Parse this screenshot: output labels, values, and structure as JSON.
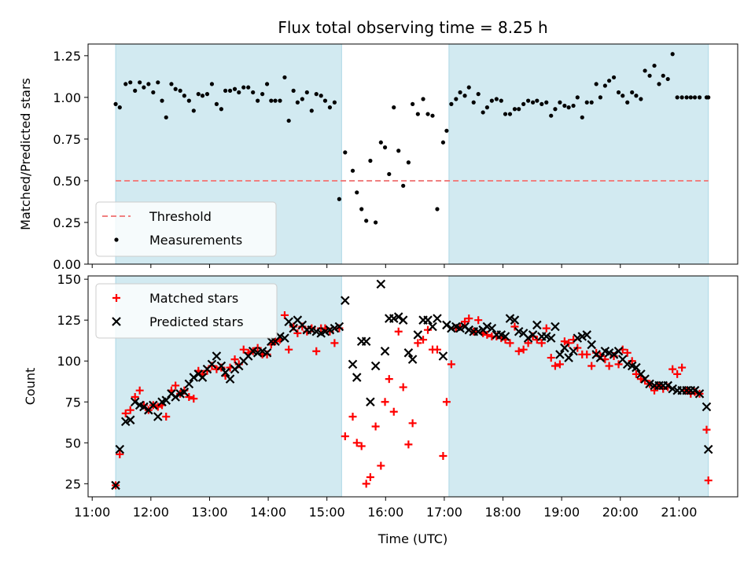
{
  "chart_data": {
    "title": "Flux total observing time = 8.25 h",
    "xlabel": "Time (UTC)",
    "x_ticks": [
      "11:00",
      "12:00",
      "13:00",
      "14:00",
      "15:00",
      "16:00",
      "17:00",
      "18:00",
      "19:00",
      "20:00",
      "21:00"
    ],
    "x_tick_hours": [
      11,
      12,
      13,
      14,
      15,
      16,
      17,
      18,
      19,
      20,
      21
    ],
    "xlim_hours": [
      10.93,
      22.0
    ],
    "shaded_intervals_hours": [
      [
        11.4,
        15.25
      ],
      [
        17.08,
        21.5
      ]
    ],
    "shade_color": "#add8e6",
    "panels": [
      {
        "type": "scatter",
        "ylabel": "Matched/Predicted stars",
        "ylim": [
          0,
          1.32
        ],
        "y_ticks": [
          "0.00",
          "0.25",
          "0.50",
          "0.75",
          "1.00",
          "1.25"
        ],
        "y_tick_values": [
          0,
          0.25,
          0.5,
          0.75,
          1.0,
          1.25
        ],
        "threshold": {
          "name": "Threshold",
          "value": 0.5,
          "color": "#f08080"
        },
        "legend_position": "lower-left",
        "series": [
          {
            "name": "Measurements",
            "color": "#000000",
            "marker": "dot",
            "x_hours": [
              11.4,
              11.47,
              11.57,
              11.65,
              11.73,
              11.81,
              11.88,
              11.96,
              12.04,
              12.12,
              12.19,
              12.26,
              12.35,
              12.42,
              12.5,
              12.57,
              12.65,
              12.73,
              12.81,
              12.88,
              12.96,
              13.04,
              13.12,
              13.2,
              13.27,
              13.35,
              13.43,
              13.5,
              13.58,
              13.66,
              13.74,
              13.82,
              13.9,
              13.98,
              14.05,
              14.12,
              14.2,
              14.28,
              14.35,
              14.43,
              14.5,
              14.58,
              14.66,
              14.74,
              14.82,
              14.9,
              14.97,
              15.05,
              15.13,
              15.21,
              15.31,
              15.44,
              15.51,
              15.59,
              15.67,
              15.74,
              15.83,
              15.92,
              15.99,
              16.06,
              16.14,
              16.22,
              16.3,
              16.39,
              16.46,
              16.55,
              16.64,
              16.72,
              16.8,
              16.88,
              16.98,
              17.04,
              17.12,
              17.2,
              17.27,
              17.35,
              17.42,
              17.5,
              17.58,
              17.66,
              17.73,
              17.81,
              17.89,
              17.97,
              18.04,
              18.12,
              18.2,
              18.27,
              18.35,
              18.43,
              18.51,
              18.58,
              18.66,
              18.74,
              18.82,
              18.89,
              18.97,
              19.05,
              19.12,
              19.2,
              19.27,
              19.35,
              19.43,
              19.51,
              19.59,
              19.66,
              19.74,
              19.81,
              19.89,
              19.97,
              20.04,
              20.12,
              20.2,
              20.27,
              20.35,
              20.42,
              20.5,
              20.58,
              20.66,
              20.73,
              20.81,
              20.89,
              20.97,
              21.05,
              21.13,
              21.2,
              21.27,
              21.35,
              21.47,
              21.5
            ],
            "y": [
              0.96,
              0.94,
              1.08,
              1.09,
              1.04,
              1.09,
              1.06,
              1.08,
              1.03,
              1.09,
              0.98,
              0.88,
              1.08,
              1.05,
              1.04,
              1.01,
              0.98,
              0.92,
              1.02,
              1.01,
              1.02,
              1.08,
              0.96,
              0.93,
              1.04,
              1.04,
              1.05,
              1.03,
              1.06,
              1.06,
              1.03,
              0.98,
              1.02,
              1.08,
              0.98,
              0.98,
              0.98,
              1.12,
              0.86,
              1.04,
              0.97,
              0.99,
              1.03,
              0.92,
              1.02,
              1.01,
              0.98,
              0.94,
              0.97,
              0.39,
              0.67,
              0.56,
              0.43,
              0.33,
              0.26,
              0.62,
              0.25,
              0.73,
              0.7,
              0.54,
              0.94,
              0.68,
              0.47,
              0.61,
              0.96,
              0.9,
              0.99,
              0.9,
              0.89,
              0.33,
              0.73,
              0.8,
              0.96,
              0.99,
              1.03,
              1.01,
              1.06,
              0.97,
              1.02,
              0.91,
              0.94,
              0.98,
              0.99,
              0.98,
              0.9,
              0.9,
              0.93,
              0.93,
              0.96,
              0.98,
              0.97,
              0.98,
              0.96,
              0.97,
              0.89,
              0.93,
              0.97,
              0.95,
              0.94,
              0.95,
              1.0,
              0.88,
              0.97,
              0.97,
              1.08,
              1.0,
              1.07,
              1.1,
              1.12,
              1.03,
              1.01,
              0.97,
              1.03,
              1.01,
              0.99,
              1.16,
              1.13,
              1.19,
              1.08,
              1.13,
              1.11,
              1.26,
              1.0,
              1.0,
              1.0,
              1.0,
              1.0,
              1.0,
              1.0,
              1.0
            ]
          }
        ]
      },
      {
        "type": "scatter",
        "ylabel": "Count",
        "ylim": [
          17,
          152
        ],
        "y_ticks": [
          "25",
          "50",
          "75",
          "100",
          "125",
          "150"
        ],
        "y_tick_values": [
          25,
          50,
          75,
          100,
          125,
          150
        ],
        "legend_position": "upper-left",
        "series": [
          {
            "name": "Matched stars",
            "color": "#ff0000",
            "marker": "plus",
            "x_hours": [
              11.4,
              11.47,
              11.57,
              11.65,
              11.73,
              11.81,
              11.88,
              11.96,
              12.04,
              12.12,
              12.19,
              12.26,
              12.35,
              12.42,
              12.5,
              12.57,
              12.65,
              12.73,
              12.81,
              12.88,
              12.96,
              13.04,
              13.12,
              13.2,
              13.27,
              13.35,
              13.43,
              13.5,
              13.58,
              13.66,
              13.74,
              13.82,
              13.9,
              13.98,
              14.05,
              14.12,
              14.2,
              14.28,
              14.35,
              14.43,
              14.5,
              14.58,
              14.66,
              14.74,
              14.82,
              14.9,
              14.97,
              15.05,
              15.13,
              15.21,
              15.31,
              15.44,
              15.51,
              15.59,
              15.67,
              15.74,
              15.83,
              15.92,
              15.99,
              16.06,
              16.14,
              16.22,
              16.3,
              16.39,
              16.46,
              16.55,
              16.64,
              16.72,
              16.8,
              16.88,
              16.98,
              17.04,
              17.12,
              17.2,
              17.27,
              17.35,
              17.42,
              17.5,
              17.58,
              17.66,
              17.73,
              17.81,
              17.89,
              17.97,
              18.04,
              18.12,
              18.2,
              18.27,
              18.35,
              18.43,
              18.51,
              18.58,
              18.66,
              18.74,
              18.82,
              18.89,
              18.97,
              19.05,
              19.12,
              19.2,
              19.27,
              19.35,
              19.43,
              19.51,
              19.59,
              19.66,
              19.74,
              19.81,
              19.89,
              19.97,
              20.04,
              20.12,
              20.2,
              20.27,
              20.35,
              20.42,
              20.5,
              20.58,
              20.66,
              20.73,
              20.81,
              20.89,
              20.97,
              21.05,
              21.13,
              21.2,
              21.27,
              21.35,
              21.47,
              21.5
            ],
            "y": [
              24,
              43,
              68,
              70,
              78,
              82,
              73,
              70,
              73,
              72,
              73,
              66,
              82,
              85,
              80,
              82,
              78,
              77,
              94,
              92,
              94,
              97,
              95,
              96,
              91,
              96,
              101,
              98,
              107,
              105,
              106,
              108,
              104,
              104,
              110,
              112,
              113,
              128,
              107,
              121,
              117,
              121,
              118,
              120,
              106,
              120,
              120,
              118,
              111,
              120,
              54,
              66,
              50,
              48,
              25,
              29,
              60,
              36,
              75,
              89,
              69,
              118,
              84,
              49,
              62,
              111,
              113,
              119,
              107,
              107,
              42,
              75,
              98,
              120,
              121,
              124,
              126,
              118,
              125,
              117,
              116,
              115,
              115,
              114,
              113,
              111,
              121,
              106,
              107,
              111,
              115,
              113,
              111,
              120,
              102,
              97,
              98,
              112,
              111,
              113,
              108,
              104,
              104,
              97,
              105,
              103,
              101,
              97,
              103,
              98,
              107,
              105,
              100,
              92,
              89,
              88,
              86,
              82,
              85,
              83,
              84,
              95,
              92,
              96,
              82,
              80,
              81,
              80,
              58,
              27
            ]
          },
          {
            "name": "Predicted stars",
            "color": "#000000",
            "marker": "x",
            "x_hours": [
              11.4,
              11.47,
              11.57,
              11.65,
              11.73,
              11.81,
              11.88,
              11.96,
              12.04,
              12.12,
              12.19,
              12.26,
              12.35,
              12.42,
              12.5,
              12.57,
              12.65,
              12.73,
              12.81,
              12.88,
              12.96,
              13.04,
              13.12,
              13.2,
              13.27,
              13.35,
              13.43,
              13.5,
              13.58,
              13.66,
              13.74,
              13.82,
              13.9,
              13.98,
              14.05,
              14.12,
              14.2,
              14.28,
              14.35,
              14.43,
              14.5,
              14.58,
              14.66,
              14.74,
              14.82,
              14.9,
              14.97,
              15.05,
              15.13,
              15.21,
              15.31,
              15.44,
              15.51,
              15.59,
              15.67,
              15.74,
              15.83,
              15.92,
              15.99,
              16.06,
              16.14,
              16.22,
              16.3,
              16.39,
              16.46,
              16.55,
              16.64,
              16.72,
              16.8,
              16.88,
              16.98,
              17.04,
              17.12,
              17.2,
              17.27,
              17.35,
              17.42,
              17.5,
              17.58,
              17.66,
              17.73,
              17.81,
              17.89,
              17.97,
              18.04,
              18.12,
              18.2,
              18.27,
              18.35,
              18.43,
              18.51,
              18.58,
              18.66,
              18.74,
              18.82,
              18.89,
              18.97,
              19.05,
              19.12,
              19.2,
              19.27,
              19.35,
              19.43,
              19.51,
              19.59,
              19.66,
              19.74,
              19.81,
              19.89,
              19.97,
              20.04,
              20.12,
              20.2,
              20.27,
              20.35,
              20.42,
              20.5,
              20.58,
              20.66,
              20.73,
              20.81,
              20.89,
              20.97,
              21.05,
              21.13,
              21.2,
              21.27,
              21.35,
              21.47,
              21.5
            ],
            "y": [
              24,
              46,
              63,
              64,
              75,
              73,
              72,
              70,
              73,
              66,
              75,
              76,
              80,
              78,
              80,
              81,
              86,
              90,
              92,
              90,
              95,
              98,
              103,
              97,
              93,
              89,
              95,
              97,
              100,
              103,
              106,
              105,
              106,
              105,
              112,
              112,
              115,
              114,
              124,
              120,
              125,
              122,
              119,
              119,
              118,
              117,
              118,
              119,
              120,
              121,
              137,
              98,
              90,
              112,
              112,
              75,
              97,
              147,
              106,
              126,
              126,
              127,
              125,
              105,
              101,
              116,
              125,
              125,
              121,
              126,
              103,
              122,
              120,
              121,
              120,
              121,
              119,
              118,
              118,
              119,
              121,
              120,
              116,
              116,
              115,
              126,
              125,
              118,
              117,
              114,
              116,
              122,
              115,
              115,
              114,
              121,
              104,
              108,
              102,
              106,
              114,
              115,
              116,
              110,
              104,
              102,
              106,
              105,
              104,
              106,
              101,
              98,
              97,
              96,
              92,
              89,
              86,
              85,
              85,
              85,
              85,
              83,
              82,
              82,
              82,
              82,
              82,
              80,
              72,
              46
            ]
          }
        ]
      }
    ]
  }
}
